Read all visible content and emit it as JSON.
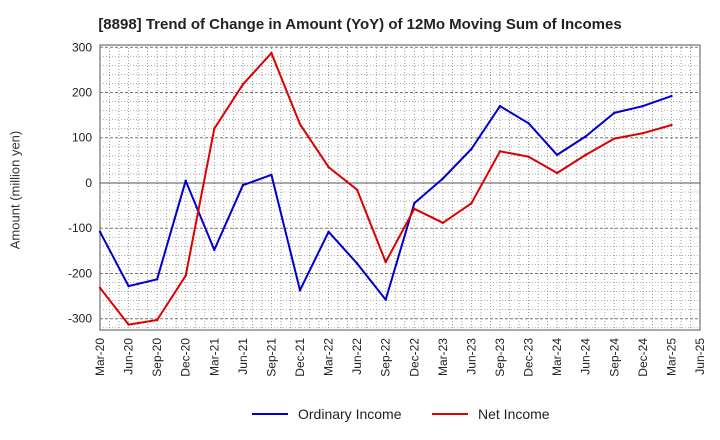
{
  "chart_data": {
    "type": "line",
    "title": "[8898]  Trend of Change in Amount (YoY) of 12Mo Moving Sum of Incomes",
    "ylabel": "Amount (million yen)",
    "xlabel": "",
    "ylim": [
      -325,
      305
    ],
    "yticks": [
      -300,
      -200,
      -100,
      0,
      100,
      200,
      300
    ],
    "grid": true,
    "legend_position": "bottom",
    "categories": [
      "Mar-20",
      "Jun-20",
      "Sep-20",
      "Dec-20",
      "Mar-21",
      "Jun-21",
      "Sep-21",
      "Dec-21",
      "Mar-22",
      "Jun-22",
      "Sep-22",
      "Dec-22",
      "Mar-23",
      "Jun-23",
      "Sep-23",
      "Dec-23",
      "Mar-24",
      "Jun-24",
      "Sep-24",
      "Dec-24",
      "Mar-25",
      "Jun-25"
    ],
    "series": [
      {
        "name": "Ordinary Income",
        "color": "#0000cc",
        "values": [
          -108,
          -228,
          -213,
          5,
          -148,
          -5,
          18,
          -237,
          -108,
          -178,
          -258,
          -45,
          10,
          75,
          170,
          132,
          62,
          103,
          155,
          170,
          192,
          null
        ]
      },
      {
        "name": "Net Income",
        "color": "#dd0000",
        "values": [
          -232,
          -313,
          -303,
          -205,
          120,
          218,
          287,
          130,
          35,
          -15,
          -175,
          -57,
          -88,
          -45,
          70,
          58,
          22,
          62,
          98,
          110,
          128,
          null
        ]
      }
    ]
  }
}
